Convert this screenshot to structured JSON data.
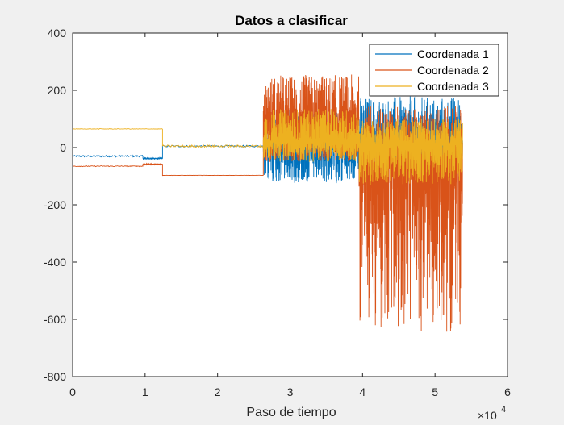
{
  "chart_data": {
    "type": "line",
    "title": "Datos a clasificar",
    "xlabel": "Paso de tiempo",
    "ylabel": "",
    "xlim": [
      0,
      6
    ],
    "ylim": [
      -800,
      400
    ],
    "x_scale_label": "×10",
    "x_scale_exp": "4",
    "x_ticks": [
      0,
      1,
      2,
      3,
      4,
      5,
      6
    ],
    "x_tick_labels": [
      "0",
      "1",
      "2",
      "3",
      "4",
      "5",
      "6"
    ],
    "y_ticks": [
      400,
      200,
      0,
      -200,
      -400,
      -600,
      -800
    ],
    "y_tick_labels": [
      "400",
      "200",
      "0",
      "-200",
      "-400",
      "-600",
      "-800"
    ],
    "legend_position": "top-right",
    "series": [
      {
        "name": "Coordenada 1",
        "color": "#0072BD",
        "segments": [
          {
            "x_start": 0,
            "x_end": 0.97,
            "level": -30,
            "amplitude": 6
          },
          {
            "x_start": 0.97,
            "x_end": 1.24,
            "level": -38,
            "amplitude": 5
          },
          {
            "x_start": 1.24,
            "x_end": 2.63,
            "level": 5,
            "amplitude": 6
          },
          {
            "x_start": 2.63,
            "x_end": 3.95,
            "level": 0,
            "min": -125,
            "max": 130
          },
          {
            "x_start": 3.95,
            "x_end": 5.38,
            "level": 0,
            "min": -60,
            "max": 180
          }
        ]
      },
      {
        "name": "Coordenada 2",
        "color": "#D95319",
        "segments": [
          {
            "x_start": 0,
            "x_end": 0.97,
            "level": -65,
            "amplitude": 3
          },
          {
            "x_start": 0.97,
            "x_end": 1.24,
            "level": -58,
            "amplitude": 3
          },
          {
            "x_start": 1.24,
            "x_end": 2.63,
            "level": -97,
            "amplitude": 1
          },
          {
            "x_start": 2.63,
            "x_end": 3.95,
            "level": 60,
            "min": -50,
            "max": 255
          },
          {
            "x_start": 3.95,
            "x_end": 5.38,
            "level": -60,
            "min": -645,
            "max": 145
          }
        ]
      },
      {
        "name": "Coordenada 3",
        "color": "#EDB120",
        "segments": [
          {
            "x_start": 0,
            "x_end": 1.24,
            "level": 65,
            "amplitude": 2
          },
          {
            "x_start": 1.24,
            "x_end": 2.63,
            "level": 5,
            "amplitude": 8
          },
          {
            "x_start": 2.63,
            "x_end": 3.95,
            "level": 20,
            "min": -50,
            "max": 135
          },
          {
            "x_start": 3.95,
            "x_end": 5.38,
            "level": 10,
            "min": -130,
            "max": 100
          }
        ]
      }
    ]
  }
}
